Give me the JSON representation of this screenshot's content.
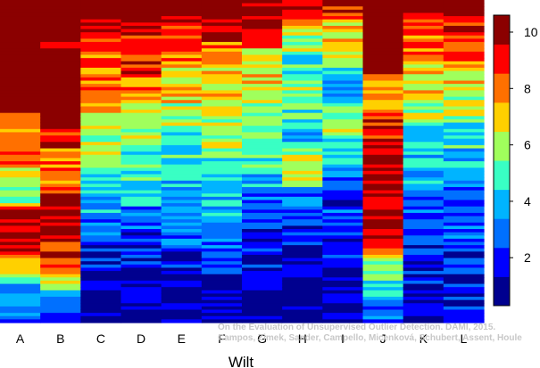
{
  "chart_data": {
    "type": "heatmap",
    "xlabel": "Wilt",
    "ylabel": "",
    "categories": [
      "A",
      "B",
      "C",
      "D",
      "E",
      "F",
      "G",
      "H",
      "I",
      "J",
      "K",
      "L"
    ],
    "value_range": [
      0.3,
      10.6
    ],
    "colorbar": {
      "ticks": [
        2,
        4,
        6,
        8,
        10
      ],
      "colors": [
        "#00008f",
        "#0000ff",
        "#0070ff",
        "#00b4ff",
        "#39ffc4",
        "#a0ff5c",
        "#ffd000",
        "#ff7000",
        "#ff0000",
        "#8b0000"
      ]
    },
    "column_profiles": [
      {
        "category": "A",
        "stops": [
          [
            0,
            10.4
          ],
          [
            0.34,
            10.3
          ],
          [
            0.36,
            7.5
          ],
          [
            0.5,
            8.5
          ],
          [
            0.56,
            5.5
          ],
          [
            0.62,
            5.0
          ],
          [
            0.66,
            10.0
          ],
          [
            0.78,
            9.5
          ],
          [
            0.88,
            4.0
          ],
          [
            1.0,
            2.5
          ]
        ]
      },
      {
        "category": "B",
        "stops": [
          [
            0,
            10.4
          ],
          [
            0.36,
            10.3
          ],
          [
            0.42,
            9.5
          ],
          [
            0.56,
            7.0
          ],
          [
            0.62,
            10.2
          ],
          [
            0.8,
            9.0
          ],
          [
            0.9,
            5.0
          ],
          [
            1.0,
            2.0
          ]
        ]
      },
      {
        "category": "C",
        "stops": [
          [
            0,
            10.4
          ],
          [
            0.08,
            9.5
          ],
          [
            0.18,
            8.0
          ],
          [
            0.32,
            7.5
          ],
          [
            0.42,
            6.0
          ],
          [
            0.52,
            5.0
          ],
          [
            0.6,
            4.0
          ],
          [
            0.7,
            3.0
          ],
          [
            0.8,
            1.5
          ],
          [
            1.0,
            1.0
          ]
        ]
      },
      {
        "category": "D",
        "stops": [
          [
            0,
            10.5
          ],
          [
            0.12,
            9.5
          ],
          [
            0.22,
            8.5
          ],
          [
            0.32,
            7.0
          ],
          [
            0.4,
            5.8
          ],
          [
            0.5,
            5.0
          ],
          [
            0.62,
            3.5
          ],
          [
            0.72,
            2.5
          ],
          [
            0.85,
            1.5
          ],
          [
            1.0,
            0.8
          ]
        ]
      },
      {
        "category": "E",
        "stops": [
          [
            0,
            10.5
          ],
          [
            0.12,
            9.0
          ],
          [
            0.22,
            7.5
          ],
          [
            0.32,
            6.5
          ],
          [
            0.4,
            5.2
          ],
          [
            0.5,
            4.5
          ],
          [
            0.62,
            3.5
          ],
          [
            0.75,
            2.5
          ],
          [
            0.85,
            1.5
          ],
          [
            1.0,
            0.8
          ]
        ]
      },
      {
        "category": "F",
        "stops": [
          [
            0,
            10.5
          ],
          [
            0.1,
            9.0
          ],
          [
            0.2,
            7.0
          ],
          [
            0.32,
            6.5
          ],
          [
            0.4,
            6.0
          ],
          [
            0.52,
            5.0
          ],
          [
            0.62,
            4.0
          ],
          [
            0.72,
            3.0
          ],
          [
            0.82,
            1.8
          ],
          [
            1.0,
            0.8
          ]
        ]
      },
      {
        "category": "G",
        "stops": [
          [
            0,
            10.4
          ],
          [
            0.1,
            8.5
          ],
          [
            0.2,
            7.0
          ],
          [
            0.3,
            6.5
          ],
          [
            0.42,
            5.5
          ],
          [
            0.52,
            4.5
          ],
          [
            0.62,
            3.0
          ],
          [
            0.72,
            2.0
          ],
          [
            0.85,
            1.5
          ],
          [
            1.0,
            0.8
          ]
        ]
      },
      {
        "category": "H",
        "stops": [
          [
            0,
            10.4
          ],
          [
            0.1,
            6.5
          ],
          [
            0.2,
            4.5
          ],
          [
            0.32,
            6.0
          ],
          [
            0.42,
            3.5
          ],
          [
            0.52,
            7.5
          ],
          [
            0.6,
            3.0
          ],
          [
            0.72,
            2.0
          ],
          [
            0.85,
            1.2
          ],
          [
            1.0,
            0.8
          ]
        ]
      },
      {
        "category": "I",
        "stops": [
          [
            0,
            10.4
          ],
          [
            0.08,
            7.0
          ],
          [
            0.18,
            5.5
          ],
          [
            0.28,
            3.0
          ],
          [
            0.38,
            6.0
          ],
          [
            0.48,
            4.5
          ],
          [
            0.58,
            2.5
          ],
          [
            0.7,
            2.0
          ],
          [
            0.85,
            1.5
          ],
          [
            1.0,
            1.0
          ]
        ]
      },
      {
        "category": "J",
        "stops": [
          [
            0,
            10.5
          ],
          [
            0.22,
            10.4
          ],
          [
            0.24,
            7.0
          ],
          [
            0.46,
            10.2
          ],
          [
            0.6,
            10.0
          ],
          [
            0.74,
            9.5
          ],
          [
            0.82,
            6.0
          ],
          [
            0.92,
            4.0
          ],
          [
            1.0,
            2.0
          ]
        ]
      },
      {
        "category": "K",
        "stops": [
          [
            0,
            10.5
          ],
          [
            0.08,
            8.5
          ],
          [
            0.18,
            7.5
          ],
          [
            0.3,
            6.5
          ],
          [
            0.4,
            5.0
          ],
          [
            0.52,
            4.0
          ],
          [
            0.62,
            3.0
          ],
          [
            0.72,
            2.5
          ],
          [
            0.85,
            1.5
          ],
          [
            1.0,
            1.0
          ]
        ]
      },
      {
        "category": "L",
        "stops": [
          [
            0,
            10.5
          ],
          [
            0.1,
            9.0
          ],
          [
            0.2,
            7.5
          ],
          [
            0.32,
            6.5
          ],
          [
            0.4,
            5.0
          ],
          [
            0.52,
            4.0
          ],
          [
            0.62,
            3.0
          ],
          [
            0.72,
            2.5
          ],
          [
            0.85,
            1.5
          ],
          [
            1.0,
            1.0
          ]
        ]
      }
    ],
    "rows_per_column": 100,
    "legend": "right"
  },
  "watermark": {
    "line1": "On the Evaluation of Unsupervised Outlier Detection. DAMI, 2015.",
    "line2": "Campos, Zimek, Sander, Campello, Micenková, Schubert, Assent, Houle"
  }
}
